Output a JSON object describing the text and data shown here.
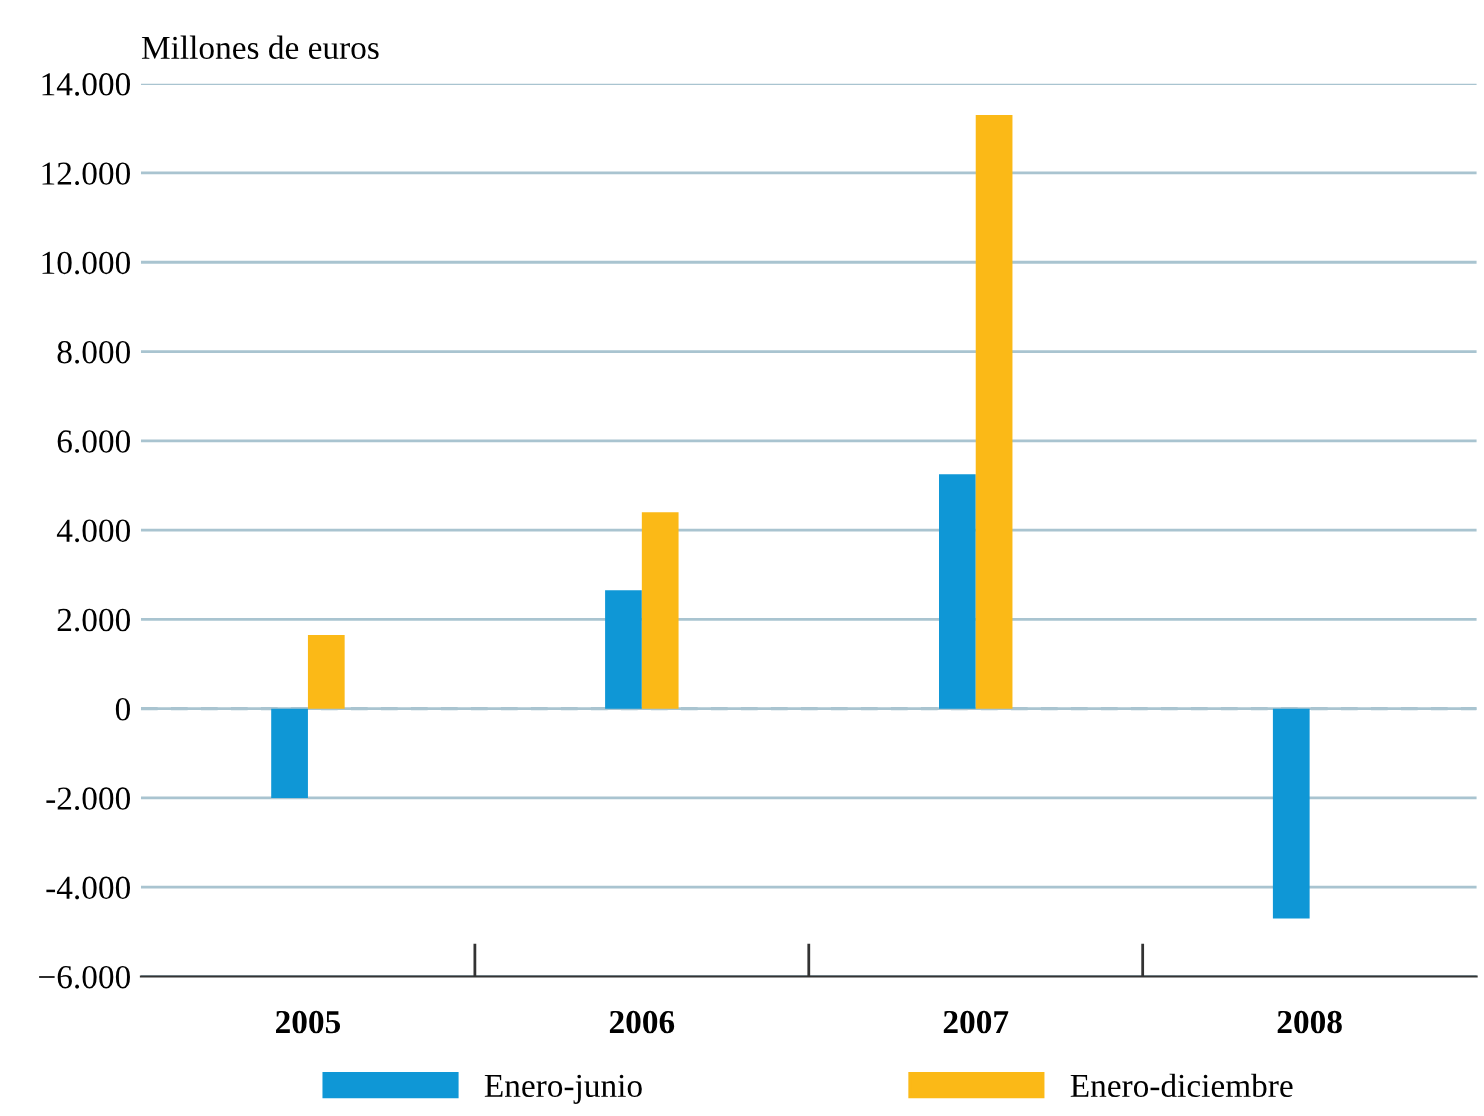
{
  "chart_data": {
    "type": "bar",
    "ylabel": "Millones de euros",
    "categories": [
      "2005",
      "2006",
      "2007",
      "2008"
    ],
    "series": [
      {
        "name": "Enero-junio",
        "color": "#0f97d6",
        "values": [
          -2000,
          2650,
          5250,
          -4700
        ]
      },
      {
        "name": "Enero-diciembre",
        "color": "#fbb917",
        "values": [
          1650,
          4400,
          13300,
          null
        ]
      }
    ],
    "ylim": [
      -6000,
      14000
    ],
    "yticks": [
      {
        "value": -6000,
        "label": "−6.000"
      },
      {
        "value": -4000,
        "label": "-4.000"
      },
      {
        "value": -2000,
        "label": "-2.000"
      },
      0,
      {
        "value": 2000,
        "label": "2.000"
      },
      {
        "value": 4000,
        "label": "4.000"
      },
      {
        "value": 6000,
        "label": "6.000"
      },
      {
        "value": 8000,
        "label": "8.000"
      },
      {
        "value": 10000,
        "label": "10.000"
      },
      {
        "value": 12000,
        "label": "12.000"
      },
      {
        "value": 14000,
        "label": "14.000"
      }
    ],
    "ref_lines": [
      {
        "axis": "y",
        "value": 0,
        "color": "#a9c4d0",
        "line_style": "dashed"
      }
    ],
    "grid": "y",
    "legend": "bottom"
  }
}
